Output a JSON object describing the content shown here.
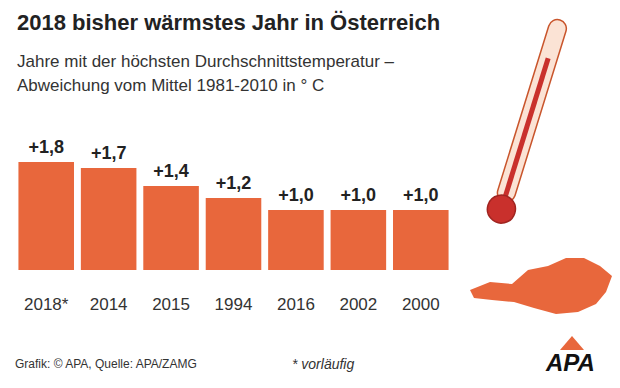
{
  "chart_data": {
    "type": "bar",
    "title": "2018 bisher wärmstes Jahr in Österreich",
    "subtitle": "Jahre mit der höchsten Durchschnittstemperatur –\nAbweichung vom Mittel 1981-2010 in ° C",
    "categories": [
      "2018*",
      "2014",
      "2015",
      "1994",
      "2016",
      "2002",
      "2000"
    ],
    "values": [
      1.8,
      1.7,
      1.4,
      1.2,
      1.0,
      1.0,
      1.0
    ],
    "value_labels": [
      "+1,8",
      "+1,7",
      "+1,4",
      "+1,2",
      "+1,0",
      "+1,0",
      "+1,0"
    ],
    "color": "#e8673c",
    "ylim": [
      0,
      1.8
    ],
    "grid": false,
    "data_labels": true,
    "tick_labels": "x",
    "annotations": [
      "Grafik: © APA, Quelle: APA/ZAMG",
      "* vorläufig",
      "APA"
    ]
  }
}
